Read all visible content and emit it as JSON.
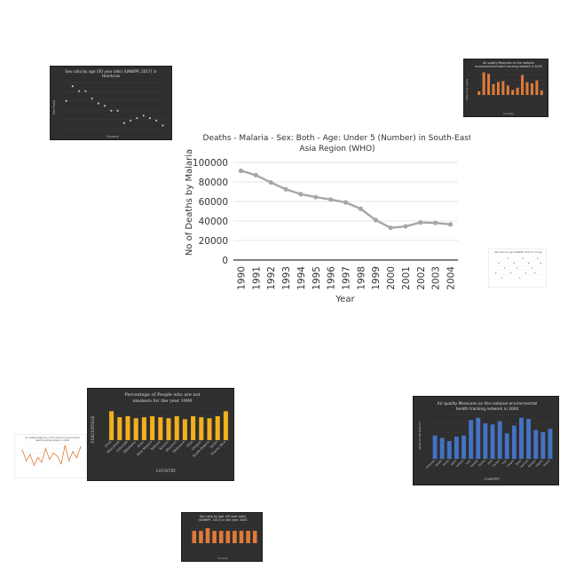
{
  "chart_data": [
    {
      "type": "line",
      "title_lines": [
        "Deaths - Malaria - Sex: Both - Age: Under 5 (Number) in South-East",
        "Asia Region (WHO)"
      ],
      "xlabel": "Year",
      "ylabel": "No of Deaths by Malaria",
      "categories": [
        "1990",
        "1991",
        "1992",
        "1993",
        "1994",
        "1995",
        "1996",
        "1997",
        "1998",
        "1999",
        "2000",
        "2001",
        "2002",
        "2003",
        "2004"
      ],
      "values": [
        91500,
        87000,
        79500,
        72500,
        67500,
        64500,
        62000,
        59000,
        52500,
        41000,
        33000,
        34500,
        38500,
        38000,
        36500
      ],
      "yticks": [
        "0",
        "20000",
        "40000",
        "60000",
        "80000",
        "100000"
      ],
      "ylim": [
        0,
        100000
      ],
      "grid": true,
      "color": "#a6a6a6"
    },
    {
      "type": "scatter",
      "title_lines": [
        "Sex ratio by age (50 year olds) (UNWPP, 2017) in",
        "Honduras"
      ],
      "xlabel": "Country",
      "ylabel": "Sex Ratio",
      "x": [
        1985,
        1990,
        1992,
        1995,
        1997,
        2000,
        2002,
        2003,
        2005,
        2006,
        2007,
        2008,
        2010,
        2011,
        2012,
        2015
      ],
      "values": [
        89,
        95,
        93,
        93,
        90,
        88,
        87,
        85,
        85,
        80,
        81,
        82,
        83,
        82,
        81,
        79
      ],
      "color": "#bbbbbb"
    },
    {
      "type": "bar",
      "title_lines": [
        "Air quality Measures on the national",
        "environmental health tracking network in 2009"
      ],
      "xlabel": "Country",
      "ylabel": "Value of air quality",
      "values": [
        10,
        62,
        58,
        30,
        36,
        38,
        26,
        14,
        20,
        55,
        35,
        32,
        40,
        12
      ],
      "color": "#e07b39"
    },
    {
      "type": "scatter",
      "title_lines": [
        "Sex ratio by age (UNWPP, 2017) in Congo"
      ],
      "values": [
        6,
        8,
        5,
        7,
        9,
        6,
        8,
        7,
        5,
        9,
        6,
        8,
        7,
        6,
        9,
        8
      ],
      "color": "#4a7bbf"
    },
    {
      "type": "bar",
      "title_lines": [
        "Percentage of People who are not",
        "smokers for the year 1999"
      ],
      "xlabel": "COUNTRY",
      "ylabel": "PERCENTAGE",
      "categories": [
        "Utah",
        "Wisconsin",
        "Colorado",
        "Oklahoma",
        "Iowa",
        "New Mexico",
        "Indiana",
        "Kansas",
        "Missouri",
        "Delaware",
        "Ohio",
        "Oregon",
        "South Dakota",
        "Idaho",
        "Puerto Rico"
      ],
      "values": [
        29,
        23,
        24,
        22,
        23,
        24,
        23,
        22,
        24,
        21,
        24,
        23,
        22,
        24,
        29
      ],
      "color": "#f2b01e"
    },
    {
      "type": "line",
      "title_lines": [
        "Air quality Measures on the national environmental",
        "health tracking network in 2004"
      ],
      "values": [
        9.5,
        8.8,
        9.2,
        8.5,
        9.0,
        8.7,
        9.6,
        8.9,
        9.3,
        9.1,
        8.6,
        9.8,
        8.8,
        9.4,
        9.0,
        9.7
      ],
      "color": "#e07b39"
    },
    {
      "type": "bar",
      "title_lines": [
        "Air quality Measures on the national environmental",
        "health tracking network in 2004"
      ],
      "xlabel": "COUNTRY",
      "ylabel": "VALUE OF AIR QUALITY",
      "yticks": [
        "0",
        "2",
        "4",
        "6",
        "8",
        "10",
        "12",
        "14",
        "16",
        "18",
        "20"
      ],
      "categories": [
        "Arkansas",
        "Alaska",
        "Maine",
        "Idaho",
        "Indiana",
        "Iowa",
        "Nevada",
        "Florida",
        "Utah",
        "Kansas",
        "Ohio",
        "Oregon",
        "Texas",
        "Vermont",
        "Georgia",
        "Virginia",
        "Hawaii"
      ],
      "values": [
        10.5,
        9.5,
        8,
        10,
        10.5,
        17.5,
        18.5,
        16,
        15.5,
        17,
        11.5,
        15,
        18.5,
        18,
        13,
        12,
        13.5
      ],
      "color": "#4472c4"
    },
    {
      "type": "bar",
      "title_lines": [
        "Sex ratio by age (30 year olds)",
        "(UNWPP, 2017) in the year 2000"
      ],
      "xlabel": "Country",
      "values": [
        99,
        99,
        101,
        99,
        99,
        99,
        99,
        99,
        99,
        99
      ],
      "color": "#e07b39"
    }
  ]
}
